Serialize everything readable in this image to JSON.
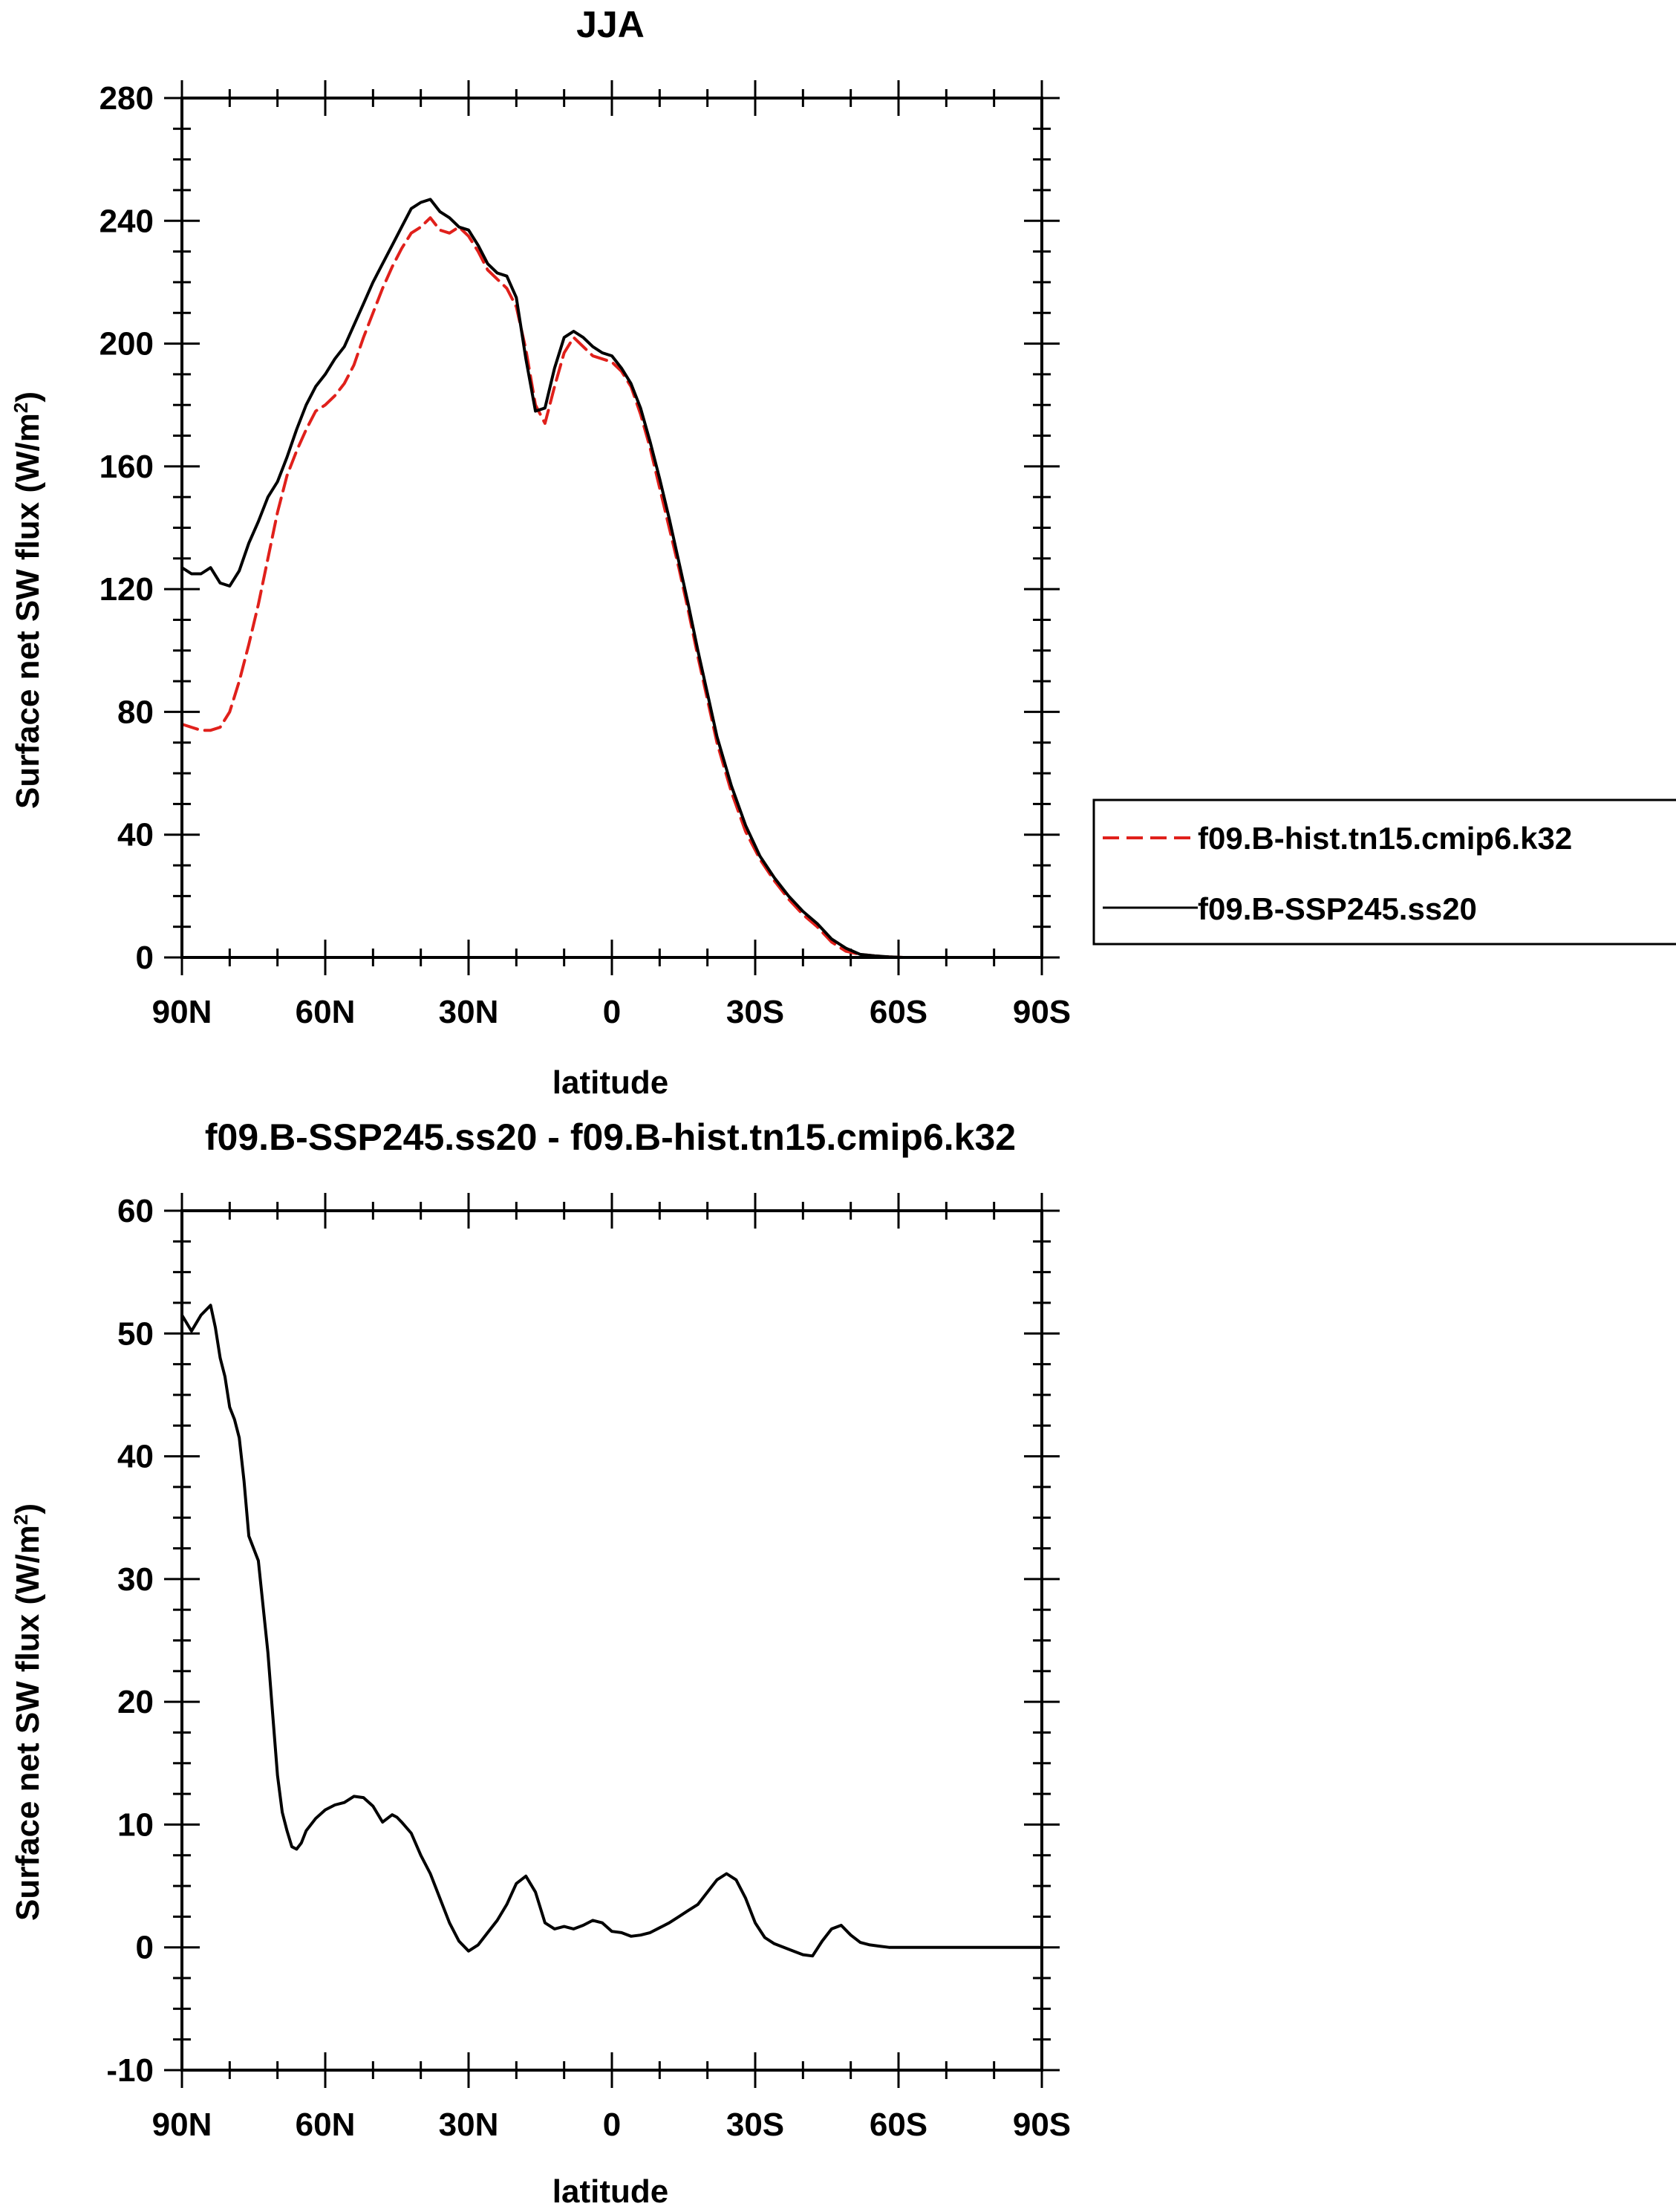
{
  "chart_data": [
    {
      "type": "line",
      "title": "JJA",
      "xlabel": "latitude",
      "ylabel": "Surface net SW flux (W/m2)",
      "ylabel_parts": {
        "main": "Surface net SW flux (W/m",
        "sup": "2",
        "end": ")"
      },
      "xlim": [
        90,
        -90
      ],
      "ylim": [
        0,
        280
      ],
      "xticks": [
        90,
        60,
        30,
        0,
        -30,
        -60,
        -90
      ],
      "xtick_labels": [
        "90N",
        "60N",
        "30N",
        "0",
        "30S",
        "60S",
        "90S"
      ],
      "yticks": [
        0,
        40,
        80,
        120,
        160,
        200,
        240,
        280
      ],
      "ytick_labels": [
        "0",
        "40",
        "80",
        "120",
        "160",
        "200",
        "240",
        "280"
      ],
      "legend": {
        "position": "right"
      },
      "series": [
        {
          "name": "f09.B-hist.tn15.cmip6.k32",
          "color": "#e0201b",
          "dash": "dashed",
          "x": [
            90,
            88,
            86,
            84,
            82,
            80,
            78,
            76,
            74,
            72,
            70,
            68,
            66,
            64,
            62,
            60,
            58,
            56,
            54,
            52,
            50,
            48,
            46,
            44,
            42,
            40,
            38,
            36,
            34,
            32,
            30,
            28,
            26,
            24,
            22,
            20,
            18,
            16,
            14,
            12,
            10,
            8,
            6,
            4,
            2,
            0,
            -2,
            -4,
            -6,
            -8,
            -10,
            -12,
            -14,
            -16,
            -18,
            -20,
            -22,
            -25,
            -28,
            -31,
            -34,
            -37,
            -40,
            -43,
            -46,
            -49,
            -52,
            -55,
            -58,
            -61,
            -63,
            -65,
            -67,
            -70,
            -73,
            -76,
            -80,
            -85,
            -90
          ],
          "y": [
            76,
            75,
            74,
            74,
            75,
            80,
            90,
            102,
            115,
            130,
            145,
            157,
            165,
            172,
            178,
            180,
            183,
            187,
            193,
            202,
            210,
            218,
            225,
            231,
            236,
            238,
            241,
            237,
            236,
            238,
            235,
            230,
            224,
            221,
            218,
            212,
            198,
            180,
            174,
            186,
            197,
            202,
            199,
            196,
            195,
            194,
            191,
            186,
            177,
            166,
            153,
            140,
            127,
            113,
            98,
            84,
            70,
            54,
            41,
            32,
            25,
            19,
            14,
            10,
            5,
            2,
            1,
            0.5,
            0.2,
            0,
            0,
            0,
            0,
            0,
            0,
            0,
            0,
            0,
            0
          ]
        },
        {
          "name": "f09.B-SSP245.ss20",
          "color": "#000000",
          "dash": "solid",
          "x": [
            90,
            88,
            86,
            84,
            82,
            80,
            78,
            76,
            74,
            72,
            70,
            68,
            66,
            64,
            62,
            60,
            58,
            56,
            54,
            52,
            50,
            48,
            46,
            44,
            42,
            40,
            38,
            36,
            34,
            32,
            30,
            28,
            26,
            24,
            22,
            20,
            18,
            16,
            14,
            12,
            10,
            8,
            6,
            4,
            2,
            0,
            -2,
            -4,
            -6,
            -8,
            -10,
            -12,
            -14,
            -16,
            -18,
            -20,
            -22,
            -25,
            -28,
            -31,
            -34,
            -37,
            -40,
            -43,
            -46,
            -49,
            -52,
            -55,
            -58,
            -61,
            -63,
            -65,
            -67,
            -70,
            -73,
            -76,
            -80,
            -85,
            -90
          ],
          "y": [
            127,
            125,
            125,
            127,
            122,
            121,
            126,
            135,
            142,
            150,
            155,
            163,
            172,
            180,
            186,
            190,
            195,
            199,
            206,
            213,
            220,
            226,
            232,
            238,
            244,
            246,
            247,
            243,
            241,
            238,
            237,
            232,
            226,
            223,
            222,
            215,
            195,
            178,
            179,
            192,
            202,
            204,
            202,
            199,
            197,
            196,
            192,
            187,
            179,
            168,
            156,
            143,
            129,
            115,
            100,
            86,
            72,
            56,
            43,
            33,
            26,
            20,
            15,
            11,
            6,
            3,
            1,
            0.5,
            0.2,
            0,
            0,
            0,
            0,
            0,
            0,
            0,
            0,
            0,
            0
          ]
        }
      ]
    },
    {
      "type": "line",
      "title": "f09.B-SSP245.ss20 - f09.B-hist.tn15.cmip6.k32",
      "xlabel": "latitude",
      "ylabel": "Surface net SW flux (W/m2)",
      "ylabel_parts": {
        "main": "Surface net SW flux (W/m",
        "sup": "2",
        "end": ")"
      },
      "xlim": [
        90,
        -90
      ],
      "ylim": [
        -10,
        60
      ],
      "xticks": [
        90,
        60,
        30,
        0,
        -30,
        -60,
        -90
      ],
      "xtick_labels": [
        "90N",
        "60N",
        "30N",
        "0",
        "30S",
        "60S",
        "90S"
      ],
      "yticks": [
        -10,
        0,
        10,
        20,
        30,
        40,
        50,
        60
      ],
      "ytick_labels": [
        "-10",
        "0",
        "10",
        "20",
        "30",
        "40",
        "50",
        "60"
      ],
      "series": [
        {
          "name": "f09.B-SSP245.ss20 - f09.B-hist.tn15.cmip6.k32",
          "color": "#000000",
          "dash": "solid",
          "x": [
            90,
            88,
            86,
            84,
            83,
            82,
            81,
            80,
            79,
            78,
            77,
            76,
            74,
            72,
            71,
            70,
            69,
            68,
            67,
            66,
            65,
            64,
            62,
            60,
            58,
            56,
            54,
            52,
            50,
            48,
            46,
            45,
            44,
            42,
            40,
            38,
            36,
            34,
            32,
            30,
            28,
            26,
            24,
            22,
            20,
            18,
            16,
            14,
            12,
            10,
            8,
            6,
            4,
            2,
            0,
            -2,
            -4,
            -6,
            -8,
            -10,
            -12,
            -14,
            -16,
            -18,
            -20,
            -22,
            -24,
            -26,
            -28,
            -30,
            -32,
            -34,
            -36,
            -38,
            -40,
            -42,
            -44,
            -46,
            -48,
            -50,
            -52,
            -54,
            -56,
            -58,
            -60,
            -62,
            -64,
            -66,
            -68,
            -70,
            -72,
            -76,
            -80,
            -85,
            -90
          ],
          "y": [
            51.5,
            50.2,
            51.5,
            52.3,
            50.5,
            48,
            46.5,
            44,
            43,
            41.5,
            38,
            33.5,
            31.5,
            24,
            19,
            14,
            11,
            9.5,
            8.2,
            8,
            8.5,
            9.5,
            10.5,
            11.2,
            11.6,
            11.8,
            12.3,
            12.2,
            11.5,
            10.2,
            10.8,
            10.6,
            10.2,
            9.3,
            7.5,
            6,
            4,
            2,
            0.5,
            -0.3,
            0.2,
            1.2,
            2.2,
            3.5,
            5.2,
            5.8,
            4.5,
            2,
            1.5,
            1.7,
            1.5,
            1.8,
            2.2,
            2,
            1.3,
            1.2,
            0.9,
            1,
            1.2,
            1.6,
            2,
            2.5,
            3,
            3.5,
            4.5,
            5.5,
            6,
            5.5,
            4,
            2,
            0.8,
            0.3,
            0,
            -0.3,
            -0.6,
            -0.7,
            0.5,
            1.5,
            1.8,
            1,
            0.4,
            0.2,
            0.1,
            0,
            0,
            0,
            0,
            0,
            0,
            0,
            0,
            0,
            0,
            0,
            0
          ]
        }
      ]
    }
  ]
}
